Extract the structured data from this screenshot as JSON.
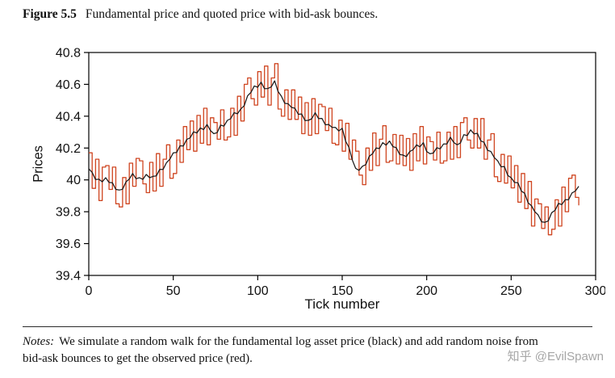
{
  "figure": {
    "label": "Figure 5.5",
    "caption": "Fundamental price and quoted price with bid-ask bounces."
  },
  "notes": {
    "label": "Notes:",
    "text": "We simulate a random walk for the fundamental log asset price (black) and add random noise from bid-ask bounces to get the observed price (red)."
  },
  "watermark": {
    "text": "知乎 @EvilSpawn"
  },
  "chart_data": {
    "type": "line",
    "title": "Figure 5.5  Fundamental price and quoted price with bid-ask bounces.",
    "xlabel": "Tick number",
    "ylabel": "Prices",
    "xlim": [
      0,
      300
    ],
    "ylim": [
      39.4,
      40.8
    ],
    "x_ticks": [
      0,
      50,
      100,
      150,
      200,
      250,
      300
    ],
    "x_tick_labels": [
      "0",
      "50",
      "100",
      "150",
      "200",
      "250",
      "300"
    ],
    "y_ticks": [
      39.4,
      39.6,
      39.8,
      40.0,
      40.2,
      40.4,
      40.6,
      40.8
    ],
    "y_tick_labels": [
      "39.4",
      "39.6",
      "39.8",
      "40",
      "40.2",
      "40.4",
      "40.6",
      "40.8"
    ],
    "grid": false,
    "legend": "none",
    "sample_step": 2,
    "series": [
      {
        "name": "Fundamental price (black)",
        "color": "#1a1a1a",
        "keypoints": [
          [
            0,
            40.07
          ],
          [
            3,
            40.02
          ],
          [
            6,
            39.99
          ],
          [
            10,
            40.01
          ],
          [
            14,
            39.97
          ],
          [
            18,
            39.93
          ],
          [
            22,
            39.98
          ],
          [
            26,
            40.03
          ],
          [
            30,
            40.0
          ],
          [
            34,
            40.03
          ],
          [
            38,
            40.01
          ],
          [
            42,
            40.06
          ],
          [
            46,
            40.1
          ],
          [
            50,
            40.16
          ],
          [
            54,
            40.2
          ],
          [
            58,
            40.25
          ],
          [
            62,
            40.29
          ],
          [
            66,
            40.32
          ],
          [
            70,
            40.34
          ],
          [
            74,
            40.28
          ],
          [
            78,
            40.33
          ],
          [
            82,
            40.37
          ],
          [
            86,
            40.41
          ],
          [
            90,
            40.44
          ],
          [
            94,
            40.52
          ],
          [
            98,
            40.58
          ],
          [
            102,
            40.6
          ],
          [
            106,
            40.57
          ],
          [
            110,
            40.61
          ],
          [
            114,
            40.52
          ],
          [
            118,
            40.47
          ],
          [
            122,
            40.44
          ],
          [
            126,
            40.4
          ],
          [
            130,
            40.37
          ],
          [
            134,
            40.41
          ],
          [
            138,
            40.38
          ],
          [
            142,
            40.34
          ],
          [
            146,
            40.32
          ],
          [
            150,
            40.31
          ],
          [
            154,
            40.2
          ],
          [
            158,
            40.06
          ],
          [
            162,
            40.08
          ],
          [
            166,
            40.14
          ],
          [
            170,
            40.19
          ],
          [
            174,
            40.22
          ],
          [
            178,
            40.24
          ],
          [
            182,
            40.19
          ],
          [
            186,
            40.15
          ],
          [
            190,
            40.17
          ],
          [
            194,
            40.21
          ],
          [
            198,
            40.22
          ],
          [
            202,
            40.16
          ],
          [
            206,
            40.19
          ],
          [
            210,
            40.22
          ],
          [
            214,
            40.26
          ],
          [
            218,
            40.21
          ],
          [
            222,
            40.27
          ],
          [
            226,
            40.31
          ],
          [
            230,
            40.28
          ],
          [
            234,
            40.23
          ],
          [
            238,
            40.17
          ],
          [
            242,
            40.11
          ],
          [
            246,
            40.07
          ],
          [
            250,
            40.01
          ],
          [
            254,
            39.97
          ],
          [
            258,
            39.91
          ],
          [
            262,
            39.83
          ],
          [
            266,
            39.77
          ],
          [
            270,
            39.72
          ],
          [
            274,
            39.79
          ],
          [
            278,
            39.84
          ],
          [
            282,
            39.87
          ],
          [
            286,
            39.91
          ],
          [
            290,
            39.95
          ]
        ]
      },
      {
        "name": "Quoted price with bid-ask bounces (red)",
        "color": "#cf4520",
        "derived": "fundamental + bounce_pattern"
      }
    ],
    "jitter_pattern": [
      0.0,
      0.01,
      -0.008,
      0.014,
      -0.012,
      0.004,
      -0.006,
      0.012,
      -0.01,
      0.006,
      -0.014,
      0.008
    ],
    "bounce_pattern": [
      0.1,
      -0.09,
      0.12,
      -0.12,
      0.08,
      0.08,
      -0.05,
      0.11,
      -0.1,
      -0.1,
      0.06,
      -0.13,
      0.1,
      -0.07,
      0.12,
      0.12,
      -0.04,
      -0.11,
      0.09,
      -0.08,
      0.13,
      -0.1,
      0.05,
      0.12,
      -0.12,
      -0.12,
      0.07,
      -0.09,
      0.11,
      -0.06,
      0.1,
      -0.11
    ]
  }
}
